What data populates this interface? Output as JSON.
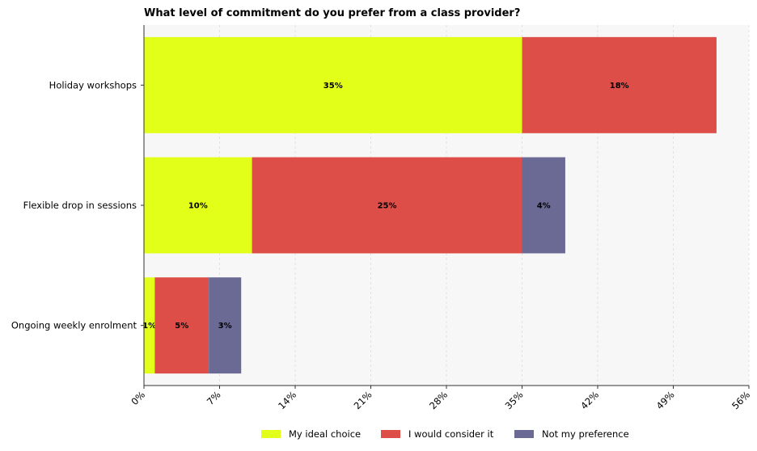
{
  "chart_data": {
    "type": "bar",
    "orientation": "horizontal",
    "stacked": true,
    "title": "What level of commitment do you prefer from a class provider?",
    "categories": [
      "Holiday workshops",
      "Flexible drop in sessions",
      "Ongoing weekly enrolment"
    ],
    "series": [
      {
        "name": "My ideal choice",
        "color": "#e2ff1a",
        "values": [
          35,
          10,
          1
        ]
      },
      {
        "name": "I would consider it",
        "color": "#de4e48",
        "values": [
          18,
          25,
          5
        ]
      },
      {
        "name": "Not my preference",
        "color": "#6b6a95",
        "values": [
          0,
          4,
          3
        ]
      }
    ],
    "data_labels": [
      [
        "35%",
        "18%",
        ""
      ],
      [
        "10%",
        "25%",
        "4%"
      ],
      [
        "1%",
        "5%",
        "3%"
      ]
    ],
    "xlim": [
      0,
      56
    ],
    "xticks": [
      0,
      7,
      14,
      21,
      28,
      35,
      42,
      49,
      56
    ],
    "xtick_labels": [
      "0%",
      "7%",
      "14%",
      "21%",
      "28%",
      "35%",
      "42%",
      "49%",
      "56%"
    ],
    "grid": "vertical dashed",
    "legend_position": "bottom-center",
    "colors": {
      "plot_background": "#f7f7f7"
    }
  }
}
